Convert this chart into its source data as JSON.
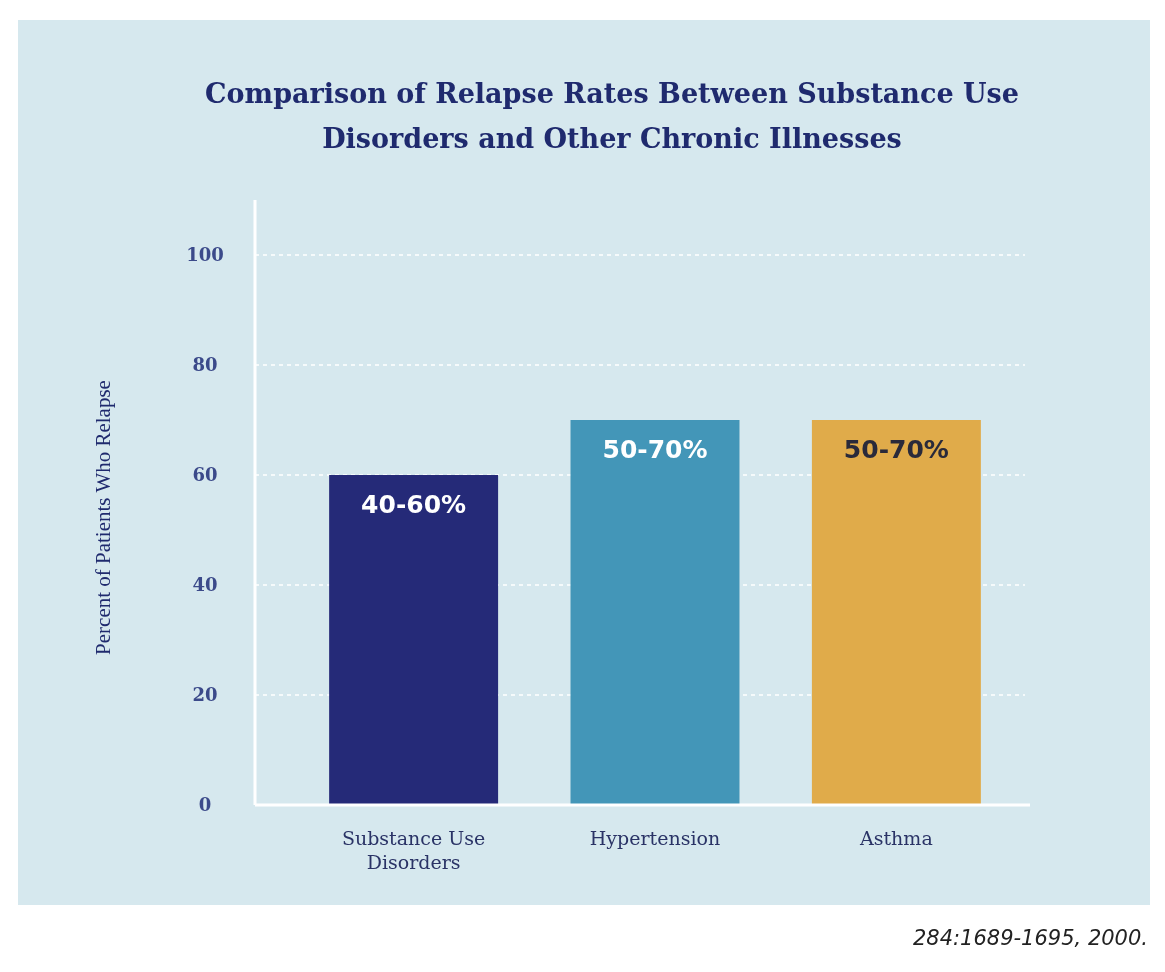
{
  "chart_data": {
    "type": "bar",
    "title": "Comparison of Relapse Rates Between Substance Use Disorders and Other Chronic Illnesses",
    "ylabel": "Percent of Patients Who Relapse",
    "categories": [
      "Substance Use Disorders",
      "Hypertension",
      "Asthma"
    ],
    "values": [
      60,
      70,
      70
    ],
    "colors": [
      "#252a78",
      "#4396b8",
      "#e0ab4a"
    ],
    "ylim": [
      0,
      110
    ],
    "yticks": [
      0,
      20,
      40,
      60,
      80,
      100
    ],
    "grid": "y",
    "annotations": [
      {
        "text": "40-60%",
        "x": "Substance Use Disorders",
        "y": 60
      },
      {
        "text": "50-70%",
        "x": "Hypertension",
        "y": 70
      },
      {
        "text": "50-70%",
        "x": "Asthma",
        "y": 70
      },
      "284:1689-1695, 2000."
    ]
  }
}
